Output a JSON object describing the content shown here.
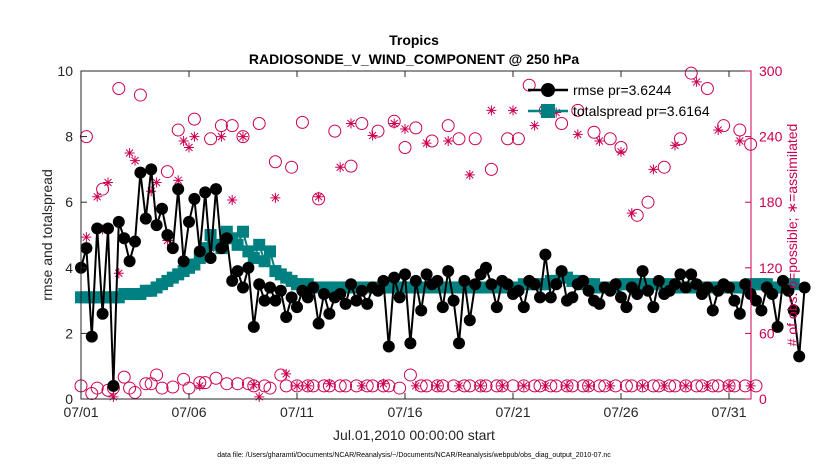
{
  "chart_data": {
    "type": "line",
    "title": "Tropics",
    "subtitle": "RADIOSONDE_V_WIND_COMPONENT @ 250 hPa",
    "xlabel": "Jul.01,2010 00:00:00 start",
    "ylabel": "rmse and totalspread",
    "ylabel_right": "# of obs: o=possible; ∗=assimilated",
    "footnote": "data file: /Users/gharamti/Documents/NCAR/Reanalysis/~/Documents/NCAR/Reanalysis/webpub/obs_diag_output_2010-07.nc",
    "x_range": [
      0,
      31
    ],
    "x_unit": "days since 07/01 00Z",
    "ylim": [
      0,
      10
    ],
    "ylim_right": [
      0,
      300
    ],
    "x_ticks": [
      {
        "x": 0,
        "label": "07/01"
      },
      {
        "x": 5,
        "label": "07/06"
      },
      {
        "x": 10,
        "label": "07/11"
      },
      {
        "x": 15,
        "label": "07/16"
      },
      {
        "x": 20,
        "label": "07/21"
      },
      {
        "x": 25,
        "label": "07/26"
      },
      {
        "x": 30,
        "label": "07/31"
      }
    ],
    "y_ticks": [
      0,
      2,
      4,
      6,
      8,
      10
    ],
    "y_ticks_right": [
      0,
      60,
      120,
      180,
      240,
      300
    ],
    "legend_position": "top-right",
    "colors": {
      "rmse": "#000000",
      "spread": "#008080",
      "obs": "#cc0052"
    },
    "series": [
      {
        "name": "rmse pr=3.6244",
        "legend": "rmse pr=3.6244",
        "marker": "circle",
        "color": "#000000",
        "values": [
          4.0,
          4.6,
          1.9,
          5.2,
          2.6,
          5.2,
          0.4,
          5.4,
          4.9,
          4.2,
          4.8,
          6.9,
          5.5,
          7.0,
          5.3,
          5.8,
          5.0,
          4.6,
          6.4,
          4.2,
          5.4,
          6.1,
          4.5,
          6.3,
          4.3,
          6.4,
          4.6,
          4.9,
          3.6,
          3.9,
          3.4,
          4.0,
          2.2,
          3.5,
          3.0,
          3.4,
          3.0,
          3.3,
          2.5,
          3.1,
          2.8,
          3.3,
          3.1,
          3.4,
          2.3,
          3.2,
          2.6,
          3.1,
          3.2,
          2.9,
          3.5,
          3.0,
          3.3,
          2.9,
          3.4,
          3.3,
          3.6,
          1.6,
          3.7,
          3.1,
          3.8,
          1.7,
          3.6,
          2.7,
          3.8,
          3.5,
          3.6,
          2.8,
          3.9,
          3.0,
          1.7,
          3.6,
          2.4,
          3.5,
          3.8,
          4.0,
          3.5,
          2.8,
          3.6,
          3.5,
          3.2,
          3.3,
          2.8,
          3.6,
          3.5,
          3.1,
          4.4,
          3.1,
          3.5,
          3.9,
          3.0,
          3.1,
          3.5,
          3.6,
          3.3,
          3.0,
          2.9,
          3.4,
          3.3,
          3.5,
          3.1,
          2.8,
          3.4,
          3.2,
          3.9,
          3.3,
          2.8,
          3.6,
          3.2,
          3.3,
          3.5,
          3.8,
          3.4,
          3.8,
          3.5,
          3.2,
          3.4,
          2.7,
          3.3,
          3.5,
          3.4,
          3.0,
          2.6,
          3.5,
          3.2,
          3.0,
          2.7,
          3.4,
          3.2,
          2.2,
          3.6,
          3.3,
          2.7,
          1.3,
          3.4
        ]
      },
      {
        "name": "totalspread pr=3.6164",
        "legend": "totalspread pr=3.6164",
        "marker": "square",
        "color": "#008080",
        "values": [
          3.1,
          3.1,
          3.1,
          3.1,
          3.1,
          3.1,
          3.1,
          3.1,
          3.2,
          3.2,
          3.2,
          3.2,
          3.3,
          3.3,
          3.4,
          3.5,
          3.6,
          3.7,
          3.8,
          3.9,
          4.0,
          4.1,
          4.3,
          4.6,
          5.0,
          4.7,
          4.6,
          5.1,
          4.9,
          4.7,
          5.1,
          4.5,
          4.3,
          4.7,
          4.2,
          4.5,
          3.9,
          3.8,
          3.7,
          3.6,
          3.5,
          3.5,
          3.5,
          3.4,
          3.4,
          3.4,
          3.4,
          3.4,
          3.4,
          3.4,
          3.4,
          3.4,
          3.4,
          3.4,
          3.4,
          3.4,
          3.4,
          3.4,
          3.4,
          3.4,
          3.4,
          3.4,
          3.4,
          3.4,
          3.4,
          3.4,
          3.4,
          3.4,
          3.4,
          3.4,
          3.4,
          3.4,
          3.4,
          3.4,
          3.4,
          3.4,
          3.4,
          3.4,
          3.4,
          3.4,
          3.4,
          3.4,
          3.5,
          3.5,
          3.5,
          3.5,
          3.5,
          3.6,
          3.6,
          3.7,
          3.7,
          3.6,
          3.6,
          3.5,
          3.5,
          3.5,
          3.4,
          3.4,
          3.4,
          3.4,
          3.5,
          3.5,
          3.5,
          3.5,
          3.5,
          3.5,
          3.5,
          3.5,
          3.5,
          3.5,
          3.4,
          3.4,
          3.4,
          3.4,
          3.4,
          3.4,
          3.4,
          3.4,
          3.4,
          3.4,
          3.4,
          3.4,
          3.4,
          3.4,
          3.5,
          3.5,
          3.5,
          3.5,
          3.4,
          3.4,
          3.4,
          3.5,
          3.5
        ]
      }
    ],
    "obs_possible": [
      {
        "x": 0.0,
        "v": 12
      },
      {
        "x": 0.25,
        "v": 240
      },
      {
        "x": 0.5,
        "v": 5
      },
      {
        "x": 0.75,
        "v": 10
      },
      {
        "x": 1.0,
        "v": 192
      },
      {
        "x": 1.25,
        "v": 8
      },
      {
        "x": 1.5,
        "v": 10
      },
      {
        "x": 1.75,
        "v": 284
      },
      {
        "x": 2.0,
        "v": 20
      },
      {
        "x": 2.25,
        "v": 10
      },
      {
        "x": 2.5,
        "v": 6
      },
      {
        "x": 2.75,
        "v": 278
      },
      {
        "x": 3.0,
        "v": 14
      },
      {
        "x": 3.25,
        "v": 14
      },
      {
        "x": 3.5,
        "v": 22
      },
      {
        "x": 3.75,
        "v": 10
      },
      {
        "x": 4.0,
        "v": 208
      },
      {
        "x": 4.25,
        "v": 11
      },
      {
        "x": 4.5,
        "v": 246
      },
      {
        "x": 4.75,
        "v": 18
      },
      {
        "x": 5.0,
        "v": 10
      },
      {
        "x": 5.25,
        "v": 256
      },
      {
        "x": 5.5,
        "v": 15
      },
      {
        "x": 5.75,
        "v": 15
      },
      {
        "x": 6.0,
        "v": 238
      },
      {
        "x": 6.25,
        "v": 19
      },
      {
        "x": 6.5,
        "v": 250
      },
      {
        "x": 6.75,
        "v": 14
      },
      {
        "x": 7.0,
        "v": 250
      },
      {
        "x": 7.25,
        "v": 14
      },
      {
        "x": 7.5,
        "v": 240
      },
      {
        "x": 7.75,
        "v": 14
      },
      {
        "x": 8.0,
        "v": 12
      },
      {
        "x": 8.25,
        "v": 252
      },
      {
        "x": 8.5,
        "v": 12
      },
      {
        "x": 8.75,
        "v": 10
      },
      {
        "x": 9.0,
        "v": 217
      },
      {
        "x": 9.25,
        "v": 22
      },
      {
        "x": 9.5,
        "v": 12
      },
      {
        "x": 9.75,
        "v": 212
      },
      {
        "x": 10.0,
        "v": 12
      },
      {
        "x": 10.25,
        "v": 253
      },
      {
        "x": 10.5,
        "v": 12
      },
      {
        "x": 10.75,
        "v": 12
      },
      {
        "x": 11.0,
        "v": 183
      },
      {
        "x": 11.25,
        "v": 12
      },
      {
        "x": 11.5,
        "v": 12
      },
      {
        "x": 11.75,
        "v": 245
      },
      {
        "x": 12.0,
        "v": 12
      },
      {
        "x": 12.25,
        "v": 12
      },
      {
        "x": 12.5,
        "v": 213
      },
      {
        "x": 12.75,
        "v": 12
      },
      {
        "x": 13.0,
        "v": 252
      },
      {
        "x": 13.25,
        "v": 12
      },
      {
        "x": 13.5,
        "v": 12
      },
      {
        "x": 13.75,
        "v": 245
      },
      {
        "x": 14.0,
        "v": 12
      },
      {
        "x": 14.25,
        "v": 12
      },
      {
        "x": 14.5,
        "v": 254
      },
      {
        "x": 14.75,
        "v": 10
      },
      {
        "x": 15.0,
        "v": 230
      },
      {
        "x": 15.25,
        "v": 22
      },
      {
        "x": 15.5,
        "v": 248
      },
      {
        "x": 15.75,
        "v": 12
      },
      {
        "x": 16.0,
        "v": 12
      },
      {
        "x": 16.25,
        "v": 236
      },
      {
        "x": 16.5,
        "v": 12
      },
      {
        "x": 16.75,
        "v": 12
      },
      {
        "x": 17.0,
        "v": 250
      },
      {
        "x": 17.25,
        "v": 12
      },
      {
        "x": 17.5,
        "v": 238
      },
      {
        "x": 17.75,
        "v": 12
      },
      {
        "x": 18.0,
        "v": 12
      },
      {
        "x": 18.25,
        "v": 238
      },
      {
        "x": 18.5,
        "v": 12
      },
      {
        "x": 18.75,
        "v": 12
      },
      {
        "x": 19.0,
        "v": 210
      },
      {
        "x": 19.25,
        "v": 12
      },
      {
        "x": 19.5,
        "v": 12
      },
      {
        "x": 19.75,
        "v": 238
      },
      {
        "x": 20.0,
        "v": 12
      },
      {
        "x": 20.25,
        "v": 238
      },
      {
        "x": 20.5,
        "v": 12
      },
      {
        "x": 20.75,
        "v": 287
      },
      {
        "x": 21.0,
        "v": 12
      },
      {
        "x": 21.25,
        "v": 12
      },
      {
        "x": 21.5,
        "v": 264
      },
      {
        "x": 21.75,
        "v": 12
      },
      {
        "x": 22.0,
        "v": 12
      },
      {
        "x": 22.25,
        "v": 252
      },
      {
        "x": 22.5,
        "v": 12
      },
      {
        "x": 22.75,
        "v": 12
      },
      {
        "x": 23.0,
        "v": 264
      },
      {
        "x": 23.25,
        "v": 12
      },
      {
        "x": 23.5,
        "v": 12
      },
      {
        "x": 23.75,
        "v": 244
      },
      {
        "x": 24.0,
        "v": 12
      },
      {
        "x": 24.25,
        "v": 12
      },
      {
        "x": 24.5,
        "v": 238
      },
      {
        "x": 24.75,
        "v": 12
      },
      {
        "x": 25.0,
        "v": 230
      },
      {
        "x": 25.25,
        "v": 12
      },
      {
        "x": 25.5,
        "v": 12
      },
      {
        "x": 25.75,
        "v": 168
      },
      {
        "x": 26.0,
        "v": 12
      },
      {
        "x": 26.25,
        "v": 180
      },
      {
        "x": 26.5,
        "v": 12
      },
      {
        "x": 26.75,
        "v": 12
      },
      {
        "x": 27.0,
        "v": 212
      },
      {
        "x": 27.25,
        "v": 12
      },
      {
        "x": 27.5,
        "v": 12
      },
      {
        "x": 27.75,
        "v": 238
      },
      {
        "x": 28.0,
        "v": 12
      },
      {
        "x": 28.25,
        "v": 298
      },
      {
        "x": 28.5,
        "v": 12
      },
      {
        "x": 28.75,
        "v": 12
      },
      {
        "x": 29.0,
        "v": 284
      },
      {
        "x": 29.25,
        "v": 12
      },
      {
        "x": 29.5,
        "v": 12
      },
      {
        "x": 29.75,
        "v": 250
      },
      {
        "x": 30.0,
        "v": 12
      },
      {
        "x": 30.25,
        "v": 12
      },
      {
        "x": 30.5,
        "v": 246
      },
      {
        "x": 30.75,
        "v": 12
      },
      {
        "x": 31.0,
        "v": 233
      },
      {
        "x": 31.25,
        "v": 12
      }
    ],
    "obs_assimilated": [
      {
        "x": 0.25,
        "v": 148
      },
      {
        "x": 0.75,
        "v": 185
      },
      {
        "x": 1.0,
        "v": 155
      },
      {
        "x": 1.25,
        "v": 198
      },
      {
        "x": 1.5,
        "v": 2
      },
      {
        "x": 1.75,
        "v": 115
      },
      {
        "x": 2.25,
        "v": 225
      },
      {
        "x": 2.5,
        "v": 218
      },
      {
        "x": 3.0,
        "v": 165
      },
      {
        "x": 3.25,
        "v": 190
      },
      {
        "x": 3.5,
        "v": 198
      },
      {
        "x": 4.0,
        "v": 145
      },
      {
        "x": 4.5,
        "v": 200
      },
      {
        "x": 4.75,
        "v": 236
      },
      {
        "x": 5.0,
        "v": 230
      },
      {
        "x": 5.25,
        "v": 240
      },
      {
        "x": 5.5,
        "v": 12
      },
      {
        "x": 6.0,
        "v": 138
      },
      {
        "x": 6.5,
        "v": 240
      },
      {
        "x": 7.0,
        "v": 182
      },
      {
        "x": 7.5,
        "v": 240
      },
      {
        "x": 8.0,
        "v": 13
      },
      {
        "x": 8.25,
        "v": 2
      },
      {
        "x": 9.0,
        "v": 184
      },
      {
        "x": 9.5,
        "v": 23
      },
      {
        "x": 10.0,
        "v": 12
      },
      {
        "x": 10.5,
        "v": 12
      },
      {
        "x": 11.0,
        "v": 185
      },
      {
        "x": 11.5,
        "v": 14
      },
      {
        "x": 12.0,
        "v": 212
      },
      {
        "x": 12.5,
        "v": 252
      },
      {
        "x": 13.0,
        "v": 12
      },
      {
        "x": 13.5,
        "v": 241
      },
      {
        "x": 14.0,
        "v": 14
      },
      {
        "x": 14.5,
        "v": 252
      },
      {
        "x": 15.0,
        "v": 247
      },
      {
        "x": 15.5,
        "v": 12
      },
      {
        "x": 16.0,
        "v": 234
      },
      {
        "x": 16.5,
        "v": 12
      },
      {
        "x": 17.0,
        "v": 236
      },
      {
        "x": 17.5,
        "v": 12
      },
      {
        "x": 18.0,
        "v": 205
      },
      {
        "x": 18.5,
        "v": 12
      },
      {
        "x": 19.0,
        "v": 264
      },
      {
        "x": 19.5,
        "v": 12
      },
      {
        "x": 20.0,
        "v": 264
      },
      {
        "x": 20.5,
        "v": 12
      },
      {
        "x": 21.0,
        "v": 250
      },
      {
        "x": 21.5,
        "v": 12
      },
      {
        "x": 22.0,
        "v": 262
      },
      {
        "x": 22.5,
        "v": 12
      },
      {
        "x": 23.0,
        "v": 242
      },
      {
        "x": 23.5,
        "v": 12
      },
      {
        "x": 24.0,
        "v": 236
      },
      {
        "x": 24.5,
        "v": 12
      },
      {
        "x": 25.0,
        "v": 226
      },
      {
        "x": 25.5,
        "v": 170
      },
      {
        "x": 26.0,
        "v": 12
      },
      {
        "x": 26.5,
        "v": 210
      },
      {
        "x": 27.0,
        "v": 12
      },
      {
        "x": 27.5,
        "v": 232
      },
      {
        "x": 28.0,
        "v": 12
      },
      {
        "x": 28.5,
        "v": 290
      },
      {
        "x": 29.0,
        "v": 12
      },
      {
        "x": 29.5,
        "v": 246
      },
      {
        "x": 30.0,
        "v": 12
      },
      {
        "x": 30.5,
        "v": 236
      },
      {
        "x": 31.0,
        "v": 12
      }
    ]
  }
}
